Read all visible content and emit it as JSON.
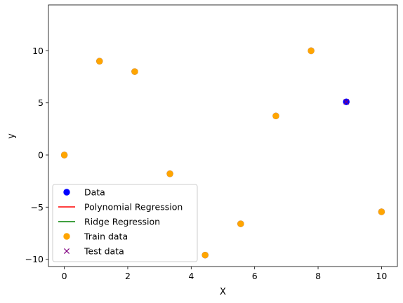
{
  "chart_data": {
    "type": "scatter",
    "title": "",
    "xlabel": "X",
    "ylabel": "y",
    "xlim": [
      -0.5,
      10.5
    ],
    "ylim": [
      -10.7,
      14.4
    ],
    "xticks": [
      0,
      2,
      4,
      6,
      8,
      10
    ],
    "yticks": [
      -10,
      -5,
      0,
      5,
      10
    ],
    "xtick_labels": [
      "0",
      "2",
      "4",
      "6",
      "8",
      "10"
    ],
    "ytick_labels": [
      "−10",
      "−5",
      "0",
      "5",
      "10"
    ],
    "grid": false,
    "legend_position": "lower-left",
    "series": [
      {
        "name": "Data",
        "kind": "scatter",
        "marker": "circle",
        "color": "#0000ff",
        "x": [
          0,
          1.11,
          2.22,
          3.33,
          4.44,
          5.56,
          6.67,
          7.78,
          8.89,
          10
        ],
        "y": [
          0,
          9,
          8,
          -1.8,
          -9.6,
          -6.6,
          3.75,
          10,
          5.1,
          -5.45
        ]
      },
      {
        "name": "Polynomial Regression",
        "kind": "line",
        "color": "#ff0000",
        "x": [],
        "y": []
      },
      {
        "name": "Ridge Regression",
        "kind": "line",
        "color": "#008000",
        "x": [],
        "y": []
      },
      {
        "name": "Train data",
        "kind": "scatter",
        "marker": "circle",
        "color": "#ffa500",
        "x": [
          0,
          1.11,
          2.22,
          3.33,
          4.44,
          5.56,
          6.67,
          7.78,
          10
        ],
        "y": [
          0,
          9,
          8,
          -1.8,
          -9.6,
          -6.6,
          3.75,
          10,
          -5.45
        ]
      },
      {
        "name": "Test data",
        "kind": "scatter",
        "marker": "x",
        "color": "#800080",
        "x": [
          8.89
        ],
        "y": [
          5.1
        ]
      }
    ]
  }
}
